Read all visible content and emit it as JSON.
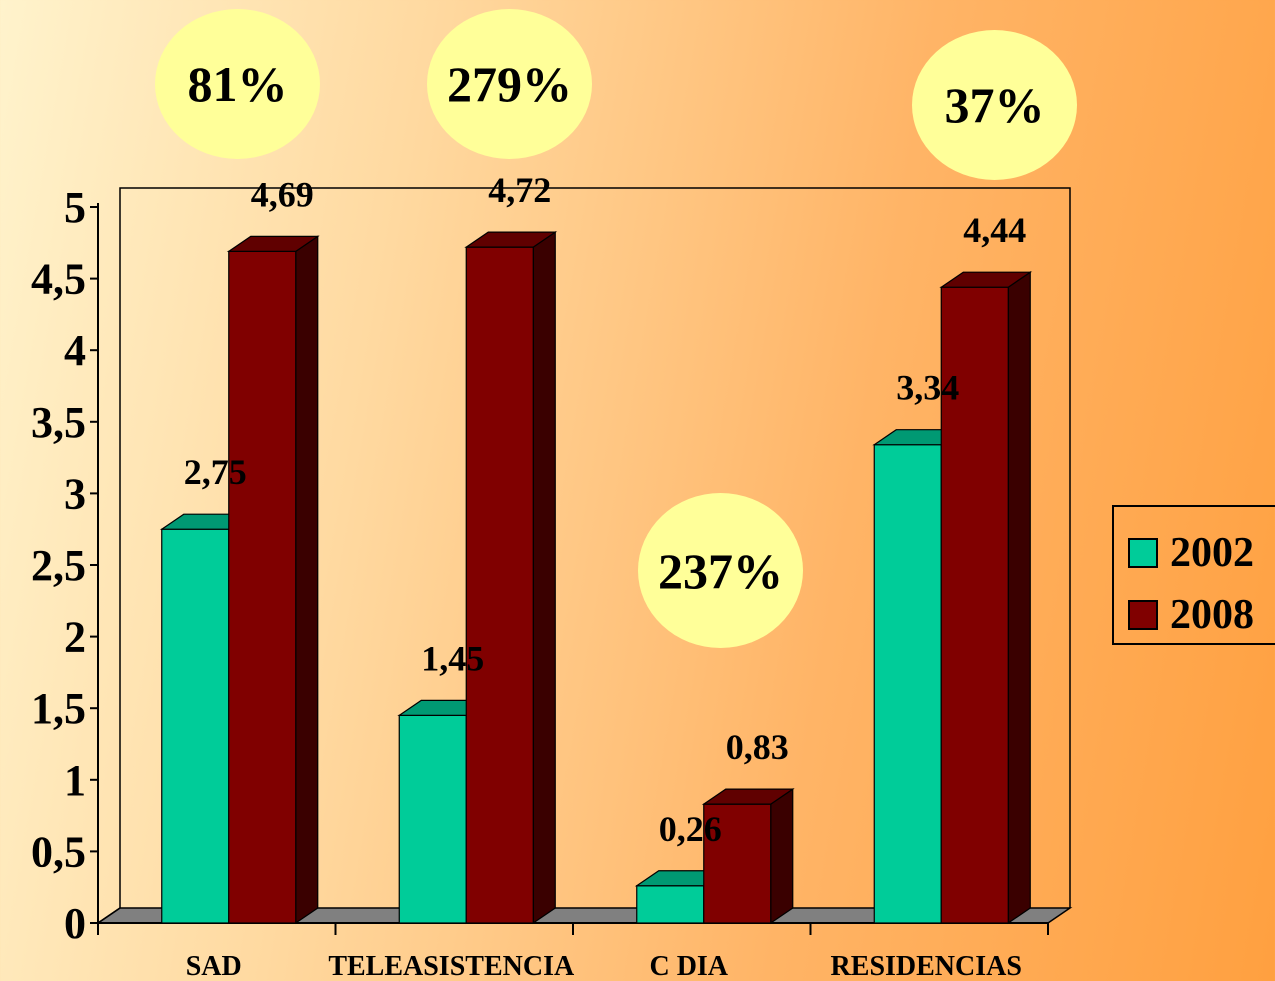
{
  "chart_data": {
    "type": "bar",
    "categories": [
      "SAD",
      "TELEASISTENCIA",
      "C DIA",
      "RESIDENCIAS"
    ],
    "series": [
      {
        "name": "2002",
        "values": [
          2.75,
          1.45,
          0.26,
          3.34
        ],
        "labels": [
          "2,75",
          "1,45",
          "0,26",
          "3,34"
        ],
        "color": "#00cc99"
      },
      {
        "name": "2008",
        "values": [
          4.69,
          4.72,
          0.83,
          4.44
        ],
        "labels": [
          "4,69",
          "4,72",
          "0,83",
          "4,44"
        ],
        "color": "#800000"
      }
    ],
    "yticks": [
      "0",
      "0,5",
      "1",
      "1,5",
      "2",
      "2,5",
      "3",
      "3,5",
      "4",
      "4,5",
      "5"
    ],
    "ylim": [
      0,
      5
    ],
    "annotations": [
      "81%",
      "279%",
      "237%",
      "37%"
    ],
    "legend_position": "right",
    "background": "#ffa040"
  }
}
